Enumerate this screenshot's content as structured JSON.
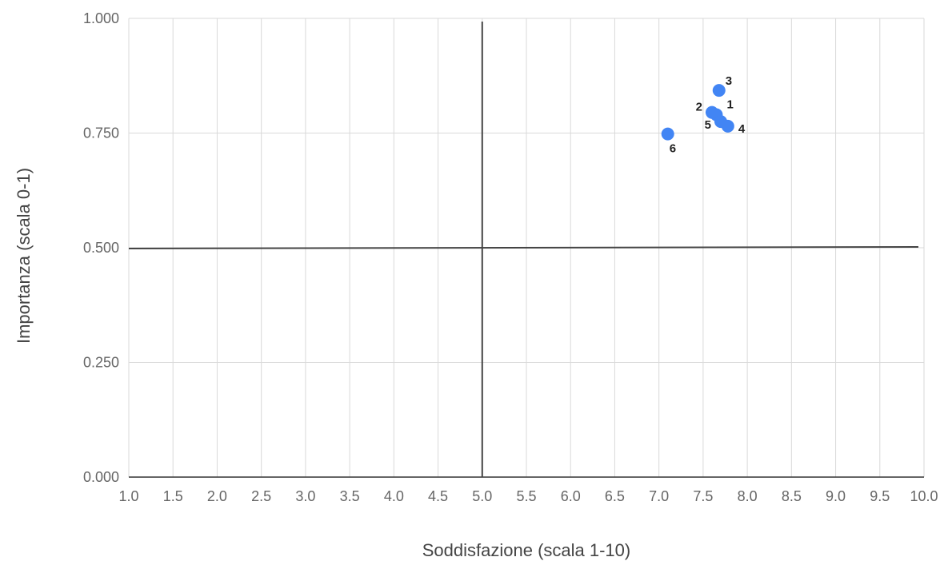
{
  "chart_data": {
    "type": "scatter",
    "title": "",
    "xlabel": "Soddisfazione (scala 1-10)",
    "ylabel": "Importanza (scala 0-1)",
    "xlim": [
      1.0,
      10.0
    ],
    "ylim": [
      0.0,
      1.0
    ],
    "x_ticks": [
      "1.0",
      "1.5",
      "2.0",
      "2.5",
      "3.0",
      "3.5",
      "4.0",
      "4.5",
      "5.0",
      "5.5",
      "6.0",
      "6.5",
      "7.0",
      "7.5",
      "8.0",
      "8.5",
      "9.0",
      "9.5",
      "10.0"
    ],
    "y_ticks": [
      "0.000",
      "0.250",
      "0.500",
      "0.750",
      "1.000"
    ],
    "grid": true,
    "reference_lines": {
      "x": 5.0,
      "y": 0.5
    },
    "point_color": "#4285f4",
    "points": [
      {
        "label": "1",
        "x": 7.65,
        "y": 0.79
      },
      {
        "label": "2",
        "x": 7.6,
        "y": 0.795
      },
      {
        "label": "3",
        "x": 7.68,
        "y": 0.843
      },
      {
        "label": "4",
        "x": 7.78,
        "y": 0.765
      },
      {
        "label": "5",
        "x": 7.7,
        "y": 0.775
      },
      {
        "label": "6",
        "x": 7.1,
        "y": 0.748
      }
    ]
  }
}
